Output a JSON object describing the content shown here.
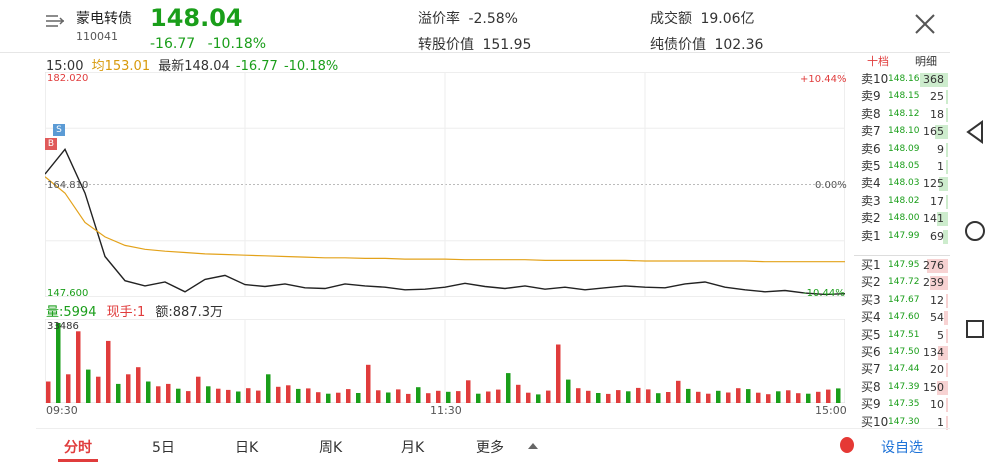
{
  "header": {
    "name": "蒙电转债",
    "code": "110041",
    "price": "148.04",
    "change": "-16.77",
    "change_pct": "-10.18%",
    "premium_label": "溢价率",
    "premium_value": "-2.58%",
    "conv_label": "转股价值",
    "conv_value": "151.95",
    "turnover_label": "成交额",
    "turnover_value": "19.06亿",
    "bond_label": "纯债价值",
    "bond_value": "102.36"
  },
  "info": {
    "time": "15:00",
    "avg": "均153.01",
    "latest": "最新148.04",
    "change": "-16.77",
    "change_pct": "-10.18%"
  },
  "chart_labels": {
    "y_top": "182.020",
    "y_mid": "164.810",
    "y_bottom": "147.600",
    "pct_top": "+10.44%",
    "pct_mid": "0.00%",
    "pct_bottom": "-10.44%",
    "marker_s": "S",
    "marker_b": "B",
    "vol_max": "33486",
    "x_start": "09:30",
    "x_mid": "11:30",
    "x_end": "15:00"
  },
  "vol_info": {
    "vol": "量:5994",
    "now_hand": "现手:1",
    "amount": "额:887.3万"
  },
  "chart_data": {
    "type": "line",
    "x_ticks": [
      "09:30",
      "11:30",
      "15:00"
    ],
    "ylim": [
      147.6,
      182.02
    ],
    "pct_range": [
      "+10.44%",
      "0.00%",
      "-10.44%"
    ],
    "prev_close": 164.81,
    "series": [
      {
        "name": "price",
        "color": "#222222",
        "values": [
          166.4,
          170.2,
          163.5,
          153.8,
          150.1,
          149.3,
          149.9,
          148.4,
          150.3,
          150.9,
          149.5,
          149.2,
          149.6,
          149.0,
          148.9,
          149.6,
          149.3,
          149.1,
          148.7,
          148.8,
          149.1,
          149.7,
          149.2,
          148.9,
          149.3,
          148.8,
          149.1,
          148.7,
          149.0,
          149.3,
          149.1,
          149.0,
          149.6,
          149.9,
          149.1,
          148.7,
          148.4,
          148.6,
          148.2,
          148.0,
          148.1
        ]
      },
      {
        "name": "均价",
        "color": "#e3a21a",
        "values": [
          166.0,
          163.5,
          159.0,
          156.8,
          155.5,
          154.9,
          154.6,
          154.4,
          154.2,
          154.1,
          154.0,
          153.9,
          153.8,
          153.7,
          153.6,
          153.6,
          153.5,
          153.5,
          153.4,
          153.4,
          153.4,
          153.3,
          153.3,
          153.3,
          153.3,
          153.2,
          153.2,
          153.2,
          153.2,
          153.2,
          153.1,
          153.1,
          153.1,
          153.1,
          153.1,
          153.1,
          153.0,
          153.0,
          153.0,
          153.0,
          153.0
        ]
      }
    ],
    "volume": {
      "max": 33486,
      "values": [
        9000,
        33486,
        12000,
        30000,
        14000,
        11000,
        26000,
        8000,
        12000,
        15000,
        9000,
        7000,
        8000,
        6000,
        5000,
        11000,
        7000,
        6000,
        5500,
        4800,
        6200,
        5200,
        12000,
        6800,
        7400,
        5900,
        6100,
        4500,
        3900,
        4300,
        5800,
        4200,
        16000,
        5300,
        4400,
        5700,
        3800,
        6600,
        4100,
        5100,
        4700,
        5000,
        9500,
        3900,
        4800,
        5600,
        12500,
        7600,
        4300,
        3600,
        5200,
        24500,
        9800,
        6200,
        5100,
        4200,
        3800,
        5400,
        4900,
        6300,
        5700,
        4100,
        4600,
        9300,
        5900,
        4700,
        3900,
        5100,
        4400,
        6200,
        5800,
        4300,
        3700,
        4900,
        5300,
        4100,
        3900,
        4700,
        5600,
        6100
      ]
    }
  },
  "orderbook": {
    "tabs": [
      "十档",
      "明细"
    ],
    "sell": [
      {
        "label": "卖10",
        "price": "148.16",
        "vol": "368"
      },
      {
        "label": "卖9",
        "price": "148.15",
        "vol": "25"
      },
      {
        "label": "卖8",
        "price": "148.12",
        "vol": "18"
      },
      {
        "label": "卖7",
        "price": "148.10",
        "vol": "165"
      },
      {
        "label": "卖6",
        "price": "148.09",
        "vol": "9"
      },
      {
        "label": "卖5",
        "price": "148.05",
        "vol": "1"
      },
      {
        "label": "卖4",
        "price": "148.03",
        "vol": "125"
      },
      {
        "label": "卖3",
        "price": "148.02",
        "vol": "17"
      },
      {
        "label": "卖2",
        "price": "148.00",
        "vol": "141"
      },
      {
        "label": "卖1",
        "price": "147.99",
        "vol": "69"
      }
    ],
    "buy": [
      {
        "label": "买1",
        "price": "147.95",
        "vol": "276"
      },
      {
        "label": "买2",
        "price": "147.72",
        "vol": "239"
      },
      {
        "label": "买3",
        "price": "147.67",
        "vol": "12"
      },
      {
        "label": "买4",
        "price": "147.60",
        "vol": "54"
      },
      {
        "label": "买5",
        "price": "147.51",
        "vol": "5"
      },
      {
        "label": "买6",
        "price": "147.50",
        "vol": "134"
      },
      {
        "label": "买7",
        "price": "147.44",
        "vol": "20"
      },
      {
        "label": "买8",
        "price": "147.39",
        "vol": "150"
      },
      {
        "label": "买9",
        "price": "147.35",
        "vol": "10"
      },
      {
        "label": "买10",
        "price": "147.30",
        "vol": "1"
      }
    ]
  },
  "tabs": [
    "分时",
    "5日",
    "日K",
    "周K",
    "月K",
    "更多"
  ],
  "add_watch": "设自选",
  "colors": {
    "up": "#e03c3c",
    "down": "#1a9e1a",
    "avg": "#e3a21a",
    "active": "#e03c3c"
  }
}
